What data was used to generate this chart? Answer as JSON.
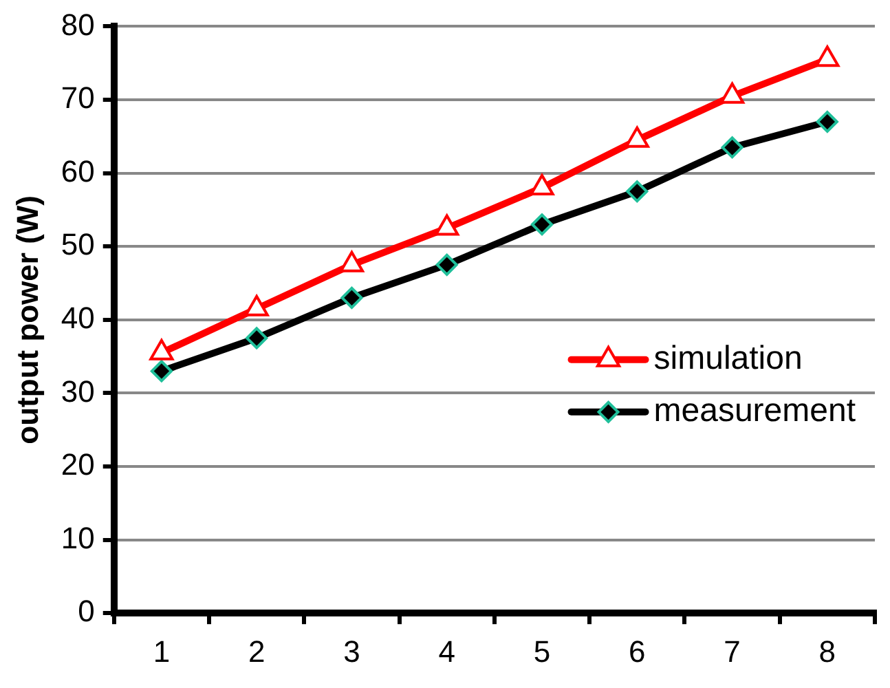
{
  "chart_data": {
    "type": "line",
    "ylabel": "output power (W)",
    "categories": [
      "1",
      "2",
      "3",
      "4",
      "5",
      "6",
      "7",
      "8"
    ],
    "series": [
      {
        "name": "simulation",
        "color": "#ff0000",
        "marker": "triangle",
        "values": [
          35.5,
          41.5,
          47.5,
          52.5,
          58,
          64.5,
          70.5,
          75.5
        ]
      },
      {
        "name": "measurement",
        "color": "#000000",
        "marker": "diamond",
        "values": [
          33,
          37.5,
          43,
          47.5,
          53,
          57.5,
          63.5,
          67
        ]
      }
    ],
    "ylim": [
      0,
      80
    ],
    "yticks": [
      0,
      10,
      20,
      30,
      40,
      50,
      60,
      70,
      80
    ],
    "grid": "y",
    "legend": "right"
  }
}
